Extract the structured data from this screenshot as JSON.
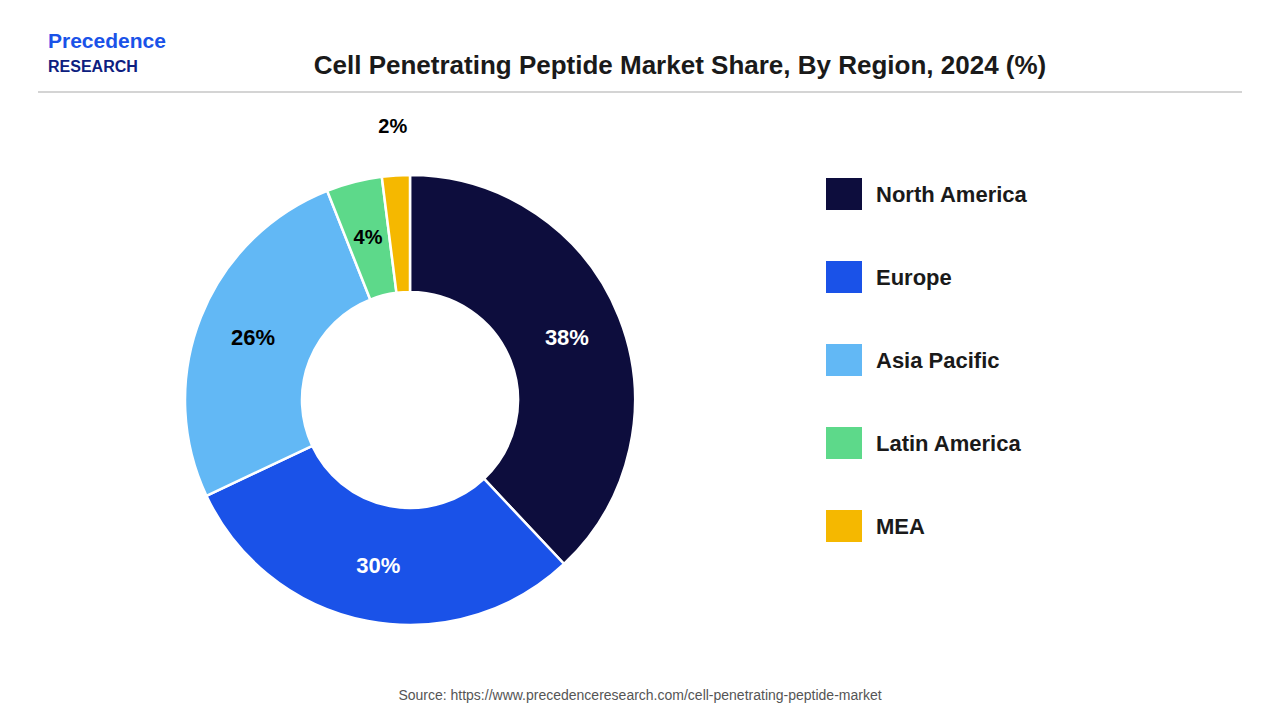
{
  "chart_data": {
    "type": "donut",
    "title": "Cell Penetrating Peptide Market Share, By Region, 2024 (%)",
    "categories": [
      "North America",
      "Europe",
      "Asia Pacific",
      "Latin America",
      "MEA"
    ],
    "values": [
      38,
      30,
      26,
      4,
      2
    ],
    "value_labels": [
      "38%",
      "30%",
      "26%",
      "4%",
      "2%"
    ],
    "colors": [
      "#0d0d3d",
      "#1a52e8",
      "#62b8f5",
      "#5dd98a",
      "#f5b800"
    ],
    "data_labels": true,
    "legend": "right",
    "annotations": [
      {
        "text": "Source: https://www.precedenceresearch.com/cell-penetrating-peptide-market",
        "color": "#555555"
      },
      {
        "text": "Precedence",
        "color": "#1a52e8"
      },
      {
        "text": "RESEARCH",
        "color": "#0d2080"
      }
    ]
  }
}
